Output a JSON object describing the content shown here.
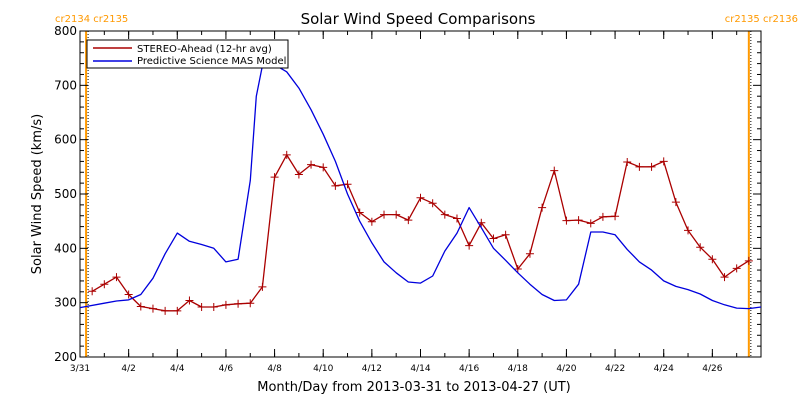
{
  "chart_data": {
    "type": "line",
    "title": "Solar Wind Speed Comparisons",
    "xlabel": "Month/Day from 2013-03-31 to 2013-04-27 (UT)",
    "ylabel": "Solar Wind Speed (km/s)",
    "xlim": [
      "2013-03-31T00:00",
      "2013-04-28T00:00"
    ],
    "ylim": [
      200,
      800
    ],
    "y_ticks": [
      200,
      300,
      400,
      500,
      600,
      700,
      800
    ],
    "x_tick_labels": [
      {
        "date": "2013-03-31",
        "label": "3/31"
      },
      {
        "date": "2013-04-02",
        "label": "4/2"
      },
      {
        "date": "2013-04-04",
        "label": "4/4"
      },
      {
        "date": "2013-04-06",
        "label": "4/6"
      },
      {
        "date": "2013-04-08",
        "label": "4/8"
      },
      {
        "date": "2013-04-10",
        "label": "4/10"
      },
      {
        "date": "2013-04-12",
        "label": "4/12"
      },
      {
        "date": "2013-04-14",
        "label": "4/14"
      },
      {
        "date": "2013-04-16",
        "label": "4/16"
      },
      {
        "date": "2013-04-18",
        "label": "4/18"
      },
      {
        "date": "2013-04-20",
        "label": "4/20"
      },
      {
        "date": "2013-04-22",
        "label": "4/22"
      },
      {
        "date": "2013-04-24",
        "label": "4/24"
      },
      {
        "date": "2013-04-26",
        "label": "4/26"
      }
    ],
    "legend_position": "top-left",
    "carrington_markers": [
      {
        "date": "2013-03-31T06:00",
        "left_label": "cr2134",
        "right_label": "cr2135",
        "side": "left"
      },
      {
        "date": "2013-04-27T12:00",
        "left_label": "cr2135",
        "right_label": "cr2136",
        "side": "right"
      }
    ],
    "marker_color": "#ff9900",
    "series": [
      {
        "name": "STEREO-Ahead (12-hr avg)",
        "color": "#aa0000",
        "marker": "plus",
        "x": [
          "2013-03-31T12:00",
          "2013-04-01T00:00",
          "2013-04-01T12:00",
          "2013-04-02T00:00",
          "2013-04-02T12:00",
          "2013-04-03T00:00",
          "2013-04-03T12:00",
          "2013-04-04T00:00",
          "2013-04-04T12:00",
          "2013-04-05T00:00",
          "2013-04-05T12:00",
          "2013-04-06T00:00",
          "2013-04-06T12:00",
          "2013-04-07T00:00",
          "2013-04-07T12:00",
          "2013-04-08T00:00",
          "2013-04-08T12:00",
          "2013-04-09T00:00",
          "2013-04-09T12:00",
          "2013-04-10T00:00",
          "2013-04-10T12:00",
          "2013-04-11T00:00",
          "2013-04-11T12:00",
          "2013-04-12T00:00",
          "2013-04-12T12:00",
          "2013-04-13T00:00",
          "2013-04-13T12:00",
          "2013-04-14T00:00",
          "2013-04-14T12:00",
          "2013-04-15T00:00",
          "2013-04-15T12:00",
          "2013-04-16T00:00",
          "2013-04-16T12:00",
          "2013-04-17T00:00",
          "2013-04-17T12:00",
          "2013-04-18T00:00",
          "2013-04-18T12:00",
          "2013-04-19T00:00",
          "2013-04-19T12:00",
          "2013-04-20T00:00",
          "2013-04-20T12:00",
          "2013-04-21T00:00",
          "2013-04-21T12:00",
          "2013-04-22T00:00",
          "2013-04-22T12:00",
          "2013-04-23T00:00",
          "2013-04-23T12:00",
          "2013-04-24T00:00",
          "2013-04-24T12:00",
          "2013-04-25T00:00",
          "2013-04-25T12:00",
          "2013-04-26T00:00",
          "2013-04-26T12:00",
          "2013-04-27T00:00",
          "2013-04-27T12:00"
        ],
        "values": [
          321,
          334,
          347,
          315,
          293,
          289,
          285,
          285,
          304,
          292,
          292,
          296,
          298,
          299,
          329,
          531,
          572,
          536,
          554,
          549,
          515,
          518,
          466,
          449,
          462,
          462,
          452,
          493,
          483,
          462,
          455,
          405,
          447,
          418,
          425,
          362,
          390,
          475,
          543,
          451,
          452,
          446,
          458,
          459,
          559,
          550,
          550,
          560,
          485,
          433,
          402,
          380,
          347,
          363,
          377
        ]
      },
      {
        "name": "Predictive Science MAS Model",
        "color": "#0000dd",
        "marker": "none",
        "x": [
          "2013-03-31T00:00",
          "2013-04-01T00:00",
          "2013-04-01T12:00",
          "2013-04-02T00:00",
          "2013-04-02T12:00",
          "2013-04-03T00:00",
          "2013-04-03T12:00",
          "2013-04-04T00:00",
          "2013-04-04T12:00",
          "2013-04-05T00:00",
          "2013-04-05T12:00",
          "2013-04-06T00:00",
          "2013-04-06T12:00",
          "2013-04-07T00:00",
          "2013-04-07T06:00",
          "2013-04-07T12:00",
          "2013-04-08T00:00",
          "2013-04-08T12:00",
          "2013-04-09T00:00",
          "2013-04-09T12:00",
          "2013-04-10T00:00",
          "2013-04-10T12:00",
          "2013-04-11T00:00",
          "2013-04-11T12:00",
          "2013-04-12T00:00",
          "2013-04-12T12:00",
          "2013-04-13T00:00",
          "2013-04-13T12:00",
          "2013-04-14T00:00",
          "2013-04-14T12:00",
          "2013-04-15T00:00",
          "2013-04-15T12:00",
          "2013-04-16T00:00",
          "2013-04-16T12:00",
          "2013-04-17T00:00",
          "2013-04-17T12:00",
          "2013-04-18T00:00",
          "2013-04-18T12:00",
          "2013-04-19T00:00",
          "2013-04-19T12:00",
          "2013-04-20T00:00",
          "2013-04-20T12:00",
          "2013-04-21T00:00",
          "2013-04-21T12:00",
          "2013-04-22T00:00",
          "2013-04-22T12:00",
          "2013-04-23T00:00",
          "2013-04-23T12:00",
          "2013-04-24T00:00",
          "2013-04-24T12:00",
          "2013-04-25T00:00",
          "2013-04-25T12:00",
          "2013-04-26T00:00",
          "2013-04-26T12:00",
          "2013-04-27T00:00",
          "2013-04-27T12:00",
          "2013-04-28T00:00"
        ],
        "values": [
          291,
          299,
          303,
          305,
          315,
          345,
          390,
          428,
          413,
          407,
          400,
          375,
          380,
          525,
          680,
          736,
          738,
          725,
          695,
          655,
          610,
          560,
          500,
          450,
          410,
          375,
          355,
          338,
          336,
          349,
          395,
          428,
          475,
          438,
          400,
          378,
          355,
          334,
          315,
          304,
          305,
          334,
          430,
          430,
          425,
          398,
          375,
          360,
          340,
          330,
          324,
          316,
          304,
          296,
          290,
          289,
          292
        ]
      }
    ]
  }
}
